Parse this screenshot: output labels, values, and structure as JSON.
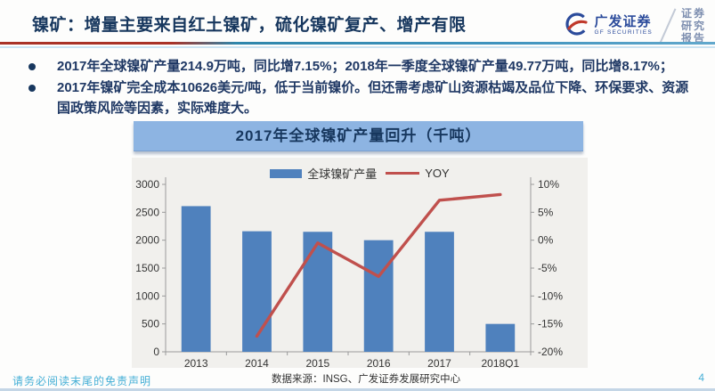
{
  "header": {
    "title": "镍矿：增量主要来自红土镍矿，硫化镍矿复产、增产有限",
    "brand": {
      "name_cn": "广发证券",
      "name_en": "GF SECURITIES",
      "side_label_lines": [
        "证券",
        "研究",
        "报告"
      ]
    }
  },
  "bullets": [
    "2017年全球镍矿产量214.9万吨，同比增7.15%；2018年一季度全球镍矿产量49.77万吨，同比增8.17%；",
    "2017年镍矿完全成本10626美元/吨，低于当前镍价。但还需考虑矿山资源枯竭及品位下降、环保要求、资源国政策风险等因素，实际难度大。"
  ],
  "chart_data": {
    "type": "bar",
    "title": "2017年全球镍矿产量回升（千吨）",
    "categories": [
      "2013",
      "2014",
      "2015",
      "2016",
      "2017",
      "2018Q1"
    ],
    "series": [
      {
        "name": "全球镍矿产量",
        "type": "bar",
        "axis": "left",
        "color": "#4F81BD",
        "values": [
          2610,
          2160,
          2150,
          2000,
          2150,
          500
        ]
      },
      {
        "name": "YOY",
        "type": "line",
        "axis": "right",
        "color": "#C0504D",
        "values": [
          null,
          -17.2,
          -0.5,
          -6.5,
          7.15,
          8.17
        ]
      }
    ],
    "left_axis": {
      "min": 0,
      "max": 3000,
      "ticks": [
        0,
        500,
        1000,
        1500,
        2000,
        2500,
        3000
      ],
      "suffix": ""
    },
    "right_axis": {
      "min": -20,
      "max": 10,
      "ticks": [
        -20,
        -15,
        -10,
        -5,
        0,
        5,
        10
      ],
      "suffix": "%"
    },
    "legend_position": "top",
    "gridlines": false
  },
  "footer": {
    "disclaimer": "请务必阅读末尾的免责声明",
    "source": "数据来源：INSG、广发证券发展研究中心",
    "page_number": "4"
  },
  "colors": {
    "title_navy": "#17375E",
    "bullet_navy": "#1F3864",
    "banner_blue": "#8DB4E2",
    "bar_blue": "#4F81BD",
    "line_red": "#C0504D",
    "footer_blue": "#45AFD6"
  }
}
